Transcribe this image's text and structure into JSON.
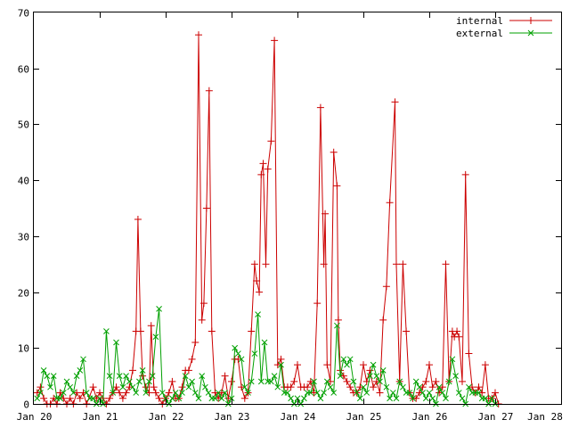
{
  "chart_data": {
    "type": "line",
    "title": "",
    "xlabel": "",
    "ylabel": "",
    "x_ticks": [
      "Jan 20",
      "Jan 21",
      "Jan 22",
      "Jan 23",
      "Jan 24",
      "Jan 25",
      "Jan 26",
      "Jan 27",
      "Jan 28"
    ],
    "xlim": [
      0,
      8
    ],
    "ylim": [
      0,
      70
    ],
    "y_ticks": [
      0,
      10,
      20,
      30,
      40,
      50,
      60,
      70
    ],
    "grid": false,
    "legend_position": "top-right",
    "x_unit": "days since Jan 20",
    "series": [
      {
        "name": "internal",
        "color": "#cc0000",
        "marker": "plus",
        "points": [
          [
            0.05,
            2
          ],
          [
            0.1,
            3
          ],
          [
            0.15,
            1
          ],
          [
            0.2,
            0
          ],
          [
            0.25,
            0
          ],
          [
            0.3,
            1
          ],
          [
            0.35,
            0
          ],
          [
            0.4,
            2
          ],
          [
            0.45,
            1
          ],
          [
            0.5,
            0
          ],
          [
            0.55,
            1
          ],
          [
            0.6,
            0
          ],
          [
            0.65,
            2
          ],
          [
            0.7,
            1
          ],
          [
            0.75,
            2
          ],
          [
            0.8,
            0
          ],
          [
            0.9,
            3
          ],
          [
            0.95,
            1
          ],
          [
            1.0,
            2
          ],
          [
            1.05,
            1
          ],
          [
            1.1,
            0
          ],
          [
            1.15,
            1
          ],
          [
            1.2,
            2
          ],
          [
            1.25,
            3
          ],
          [
            1.3,
            2
          ],
          [
            1.35,
            1
          ],
          [
            1.4,
            2
          ],
          [
            1.45,
            3
          ],
          [
            1.5,
            6
          ],
          [
            1.55,
            13
          ],
          [
            1.58,
            33
          ],
          [
            1.62,
            13
          ],
          [
            1.65,
            5
          ],
          [
            1.7,
            3
          ],
          [
            1.75,
            2
          ],
          [
            1.78,
            14
          ],
          [
            1.82,
            3
          ],
          [
            1.85,
            2
          ],
          [
            1.9,
            1
          ],
          [
            1.95,
            0
          ],
          [
            2.0,
            1
          ],
          [
            2.05,
            2
          ],
          [
            2.1,
            4
          ],
          [
            2.15,
            1
          ],
          [
            2.2,
            1
          ],
          [
            2.25,
            3
          ],
          [
            2.3,
            6
          ],
          [
            2.35,
            6
          ],
          [
            2.4,
            8
          ],
          [
            2.45,
            11
          ],
          [
            2.5,
            66
          ],
          [
            2.55,
            15
          ],
          [
            2.58,
            18
          ],
          [
            2.62,
            35
          ],
          [
            2.66,
            56
          ],
          [
            2.7,
            13
          ],
          [
            2.75,
            2
          ],
          [
            2.8,
            1
          ],
          [
            2.85,
            2
          ],
          [
            2.9,
            5
          ],
          [
            2.95,
            1
          ],
          [
            3.0,
            4
          ],
          [
            3.05,
            8
          ],
          [
            3.1,
            8
          ],
          [
            3.15,
            3
          ],
          [
            3.2,
            1
          ],
          [
            3.25,
            2
          ],
          [
            3.3,
            13
          ],
          [
            3.35,
            25
          ],
          [
            3.38,
            22
          ],
          [
            3.42,
            20
          ],
          [
            3.45,
            41
          ],
          [
            3.48,
            43
          ],
          [
            3.52,
            25
          ],
          [
            3.55,
            42
          ],
          [
            3.6,
            47
          ],
          [
            3.65,
            65
          ],
          [
            3.7,
            7
          ],
          [
            3.75,
            8
          ],
          [
            3.8,
            3
          ],
          [
            3.85,
            3
          ],
          [
            3.9,
            3
          ],
          [
            3.95,
            4
          ],
          [
            4.0,
            7
          ],
          [
            4.05,
            3
          ],
          [
            4.1,
            3
          ],
          [
            4.15,
            3
          ],
          [
            4.2,
            4
          ],
          [
            4.25,
            2
          ],
          [
            4.3,
            18
          ],
          [
            4.35,
            53
          ],
          [
            4.4,
            25
          ],
          [
            4.42,
            34
          ],
          [
            4.45,
            7
          ],
          [
            4.5,
            4
          ],
          [
            4.55,
            45
          ],
          [
            4.6,
            39
          ],
          [
            4.62,
            15
          ],
          [
            4.65,
            6
          ],
          [
            4.7,
            5
          ],
          [
            4.75,
            4
          ],
          [
            4.8,
            3
          ],
          [
            4.85,
            2
          ],
          [
            4.9,
            2
          ],
          [
            4.95,
            3
          ],
          [
            5.0,
            7
          ],
          [
            5.05,
            4
          ],
          [
            5.1,
            6
          ],
          [
            5.15,
            3
          ],
          [
            5.2,
            4
          ],
          [
            5.25,
            2
          ],
          [
            5.3,
            15
          ],
          [
            5.35,
            21
          ],
          [
            5.4,
            36
          ],
          [
            5.48,
            54
          ],
          [
            5.5,
            25
          ],
          [
            5.55,
            4
          ],
          [
            5.6,
            25
          ],
          [
            5.65,
            13
          ],
          [
            5.7,
            2
          ],
          [
            5.75,
            1
          ],
          [
            5.8,
            1
          ],
          [
            5.85,
            2
          ],
          [
            5.9,
            3
          ],
          [
            5.95,
            4
          ],
          [
            6.0,
            7
          ],
          [
            6.05,
            3
          ],
          [
            6.1,
            4
          ],
          [
            6.15,
            2
          ],
          [
            6.2,
            3
          ],
          [
            6.25,
            25
          ],
          [
            6.3,
            4
          ],
          [
            6.35,
            13
          ],
          [
            6.38,
            12
          ],
          [
            6.42,
            13
          ],
          [
            6.45,
            12
          ],
          [
            6.5,
            4
          ],
          [
            6.55,
            41
          ],
          [
            6.6,
            9
          ],
          [
            6.65,
            3
          ],
          [
            6.7,
            2
          ],
          [
            6.75,
            3
          ],
          [
            6.8,
            2
          ],
          [
            6.85,
            7
          ],
          [
            6.9,
            1
          ],
          [
            6.95,
            1
          ],
          [
            7.0,
            2
          ],
          [
            7.05,
            0
          ]
        ]
      },
      {
        "name": "external",
        "color": "#00a000",
        "marker": "cross",
        "points": [
          [
            0.05,
            1
          ],
          [
            0.1,
            2
          ],
          [
            0.15,
            6
          ],
          [
            0.2,
            5
          ],
          [
            0.25,
            3
          ],
          [
            0.3,
            5
          ],
          [
            0.35,
            1
          ],
          [
            0.4,
            1
          ],
          [
            0.45,
            2
          ],
          [
            0.5,
            4
          ],
          [
            0.55,
            3
          ],
          [
            0.6,
            2
          ],
          [
            0.65,
            5
          ],
          [
            0.7,
            6
          ],
          [
            0.75,
            8
          ],
          [
            0.8,
            2
          ],
          [
            0.85,
            1
          ],
          [
            0.9,
            1
          ],
          [
            0.95,
            0
          ],
          [
            1.0,
            1
          ],
          [
            1.05,
            0
          ],
          [
            1.1,
            13
          ],
          [
            1.15,
            5
          ],
          [
            1.2,
            2
          ],
          [
            1.25,
            11
          ],
          [
            1.3,
            5
          ],
          [
            1.35,
            3
          ],
          [
            1.4,
            5
          ],
          [
            1.45,
            4
          ],
          [
            1.5,
            3
          ],
          [
            1.55,
            2
          ],
          [
            1.6,
            4
          ],
          [
            1.65,
            6
          ],
          [
            1.7,
            2
          ],
          [
            1.75,
            4
          ],
          [
            1.8,
            5
          ],
          [
            1.85,
            12
          ],
          [
            1.9,
            17
          ],
          [
            1.95,
            2
          ],
          [
            2.0,
            1
          ],
          [
            2.05,
            0
          ],
          [
            2.1,
            1
          ],
          [
            2.15,
            2
          ],
          [
            2.2,
            1
          ],
          [
            2.25,
            2
          ],
          [
            2.3,
            5
          ],
          [
            2.35,
            3
          ],
          [
            2.4,
            4
          ],
          [
            2.45,
            2
          ],
          [
            2.5,
            1
          ],
          [
            2.55,
            5
          ],
          [
            2.6,
            3
          ],
          [
            2.65,
            2
          ],
          [
            2.7,
            1
          ],
          [
            2.75,
            1
          ],
          [
            2.8,
            2
          ],
          [
            2.85,
            1
          ],
          [
            2.9,
            2
          ],
          [
            2.95,
            0
          ],
          [
            3.0,
            1
          ],
          [
            3.05,
            10
          ],
          [
            3.1,
            9
          ],
          [
            3.15,
            8
          ],
          [
            3.2,
            3
          ],
          [
            3.25,
            2
          ],
          [
            3.3,
            4
          ],
          [
            3.35,
            9
          ],
          [
            3.4,
            16
          ],
          [
            3.45,
            4
          ],
          [
            3.5,
            11
          ],
          [
            3.55,
            4
          ],
          [
            3.6,
            4
          ],
          [
            3.65,
            5
          ],
          [
            3.7,
            3
          ],
          [
            3.75,
            7
          ],
          [
            3.8,
            2
          ],
          [
            3.85,
            2
          ],
          [
            3.9,
            1
          ],
          [
            3.95,
            0
          ],
          [
            4.0,
            1
          ],
          [
            4.05,
            0
          ],
          [
            4.1,
            1
          ],
          [
            4.15,
            2
          ],
          [
            4.2,
            2
          ],
          [
            4.25,
            4
          ],
          [
            4.3,
            2
          ],
          [
            4.35,
            1
          ],
          [
            4.4,
            2
          ],
          [
            4.45,
            4
          ],
          [
            4.5,
            3
          ],
          [
            4.55,
            2
          ],
          [
            4.6,
            14
          ],
          [
            4.65,
            5
          ],
          [
            4.7,
            8
          ],
          [
            4.75,
            7
          ],
          [
            4.8,
            8
          ],
          [
            4.85,
            4
          ],
          [
            4.9,
            2
          ],
          [
            4.95,
            1
          ],
          [
            5.0,
            3
          ],
          [
            5.05,
            2
          ],
          [
            5.1,
            5
          ],
          [
            5.15,
            7
          ],
          [
            5.2,
            5
          ],
          [
            5.25,
            4
          ],
          [
            5.3,
            6
          ],
          [
            5.35,
            3
          ],
          [
            5.4,
            1
          ],
          [
            5.45,
            2
          ],
          [
            5.5,
            1
          ],
          [
            5.55,
            4
          ],
          [
            5.6,
            3
          ],
          [
            5.65,
            2
          ],
          [
            5.7,
            2
          ],
          [
            5.75,
            1
          ],
          [
            5.8,
            4
          ],
          [
            5.85,
            3
          ],
          [
            5.9,
            2
          ],
          [
            5.95,
            1
          ],
          [
            6.0,
            2
          ],
          [
            6.05,
            1
          ],
          [
            6.1,
            0
          ],
          [
            6.15,
            3
          ],
          [
            6.2,
            2
          ],
          [
            6.25,
            1
          ],
          [
            6.3,
            4
          ],
          [
            6.35,
            8
          ],
          [
            6.4,
            5
          ],
          [
            6.45,
            2
          ],
          [
            6.5,
            1
          ],
          [
            6.55,
            0
          ],
          [
            6.6,
            3
          ],
          [
            6.65,
            2
          ],
          [
            6.7,
            2
          ],
          [
            6.75,
            2
          ],
          [
            6.8,
            1
          ],
          [
            6.85,
            1
          ],
          [
            6.9,
            0
          ],
          [
            6.95,
            1
          ],
          [
            7.0,
            0
          ]
        ]
      }
    ]
  }
}
